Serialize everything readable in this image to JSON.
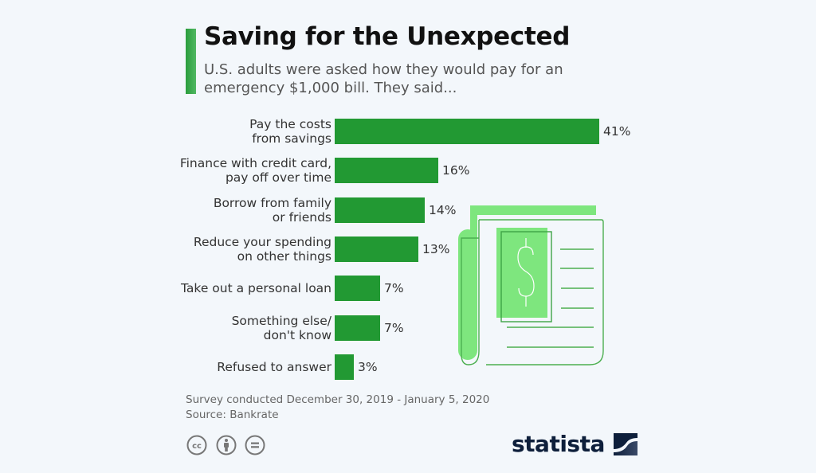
{
  "header": {
    "title": "Saving for the Unexpected",
    "subtitle": "U.S. adults were asked how they would pay for an emergency $1,000 bill. They said..."
  },
  "chart_data": {
    "type": "bar",
    "orientation": "horizontal",
    "title": "Saving for the Unexpected",
    "subtitle": "U.S. adults were asked how they would pay for an emergency $1,000 bill. They said...",
    "xlabel": "",
    "ylabel": "",
    "unit": "%",
    "categories": [
      [
        "Pay the costs",
        "from savings"
      ],
      [
        "Finance with credit card,",
        "pay off over time"
      ],
      [
        "Borrow from family",
        "or friends"
      ],
      [
        "Reduce your spending",
        "on other things"
      ],
      [
        "Take out a personal loan"
      ],
      [
        "Something else/",
        "don't know"
      ],
      [
        "Refused to answer"
      ]
    ],
    "values": [
      41,
      16,
      14,
      13,
      7,
      7,
      3
    ],
    "value_labels": [
      "41%",
      "16%",
      "14%",
      "13%",
      "7%",
      "7%",
      "3%"
    ],
    "xlim": [
      0,
      41
    ],
    "grid": false,
    "bar_color": "#229933"
  },
  "footer": {
    "note": "Survey conducted December 30, 2019 - January 5, 2020",
    "source": "Source: Bankrate"
  },
  "license_icons": [
    "cc-icon",
    "attribution-icon",
    "no-derivatives-icon"
  ],
  "brand": {
    "name": "statista",
    "color": "#0e1f3b"
  },
  "illustration": {
    "icon": "newspaper-dollar-icon",
    "light_green": "#7ee67e",
    "line_green": "#4caf50"
  }
}
